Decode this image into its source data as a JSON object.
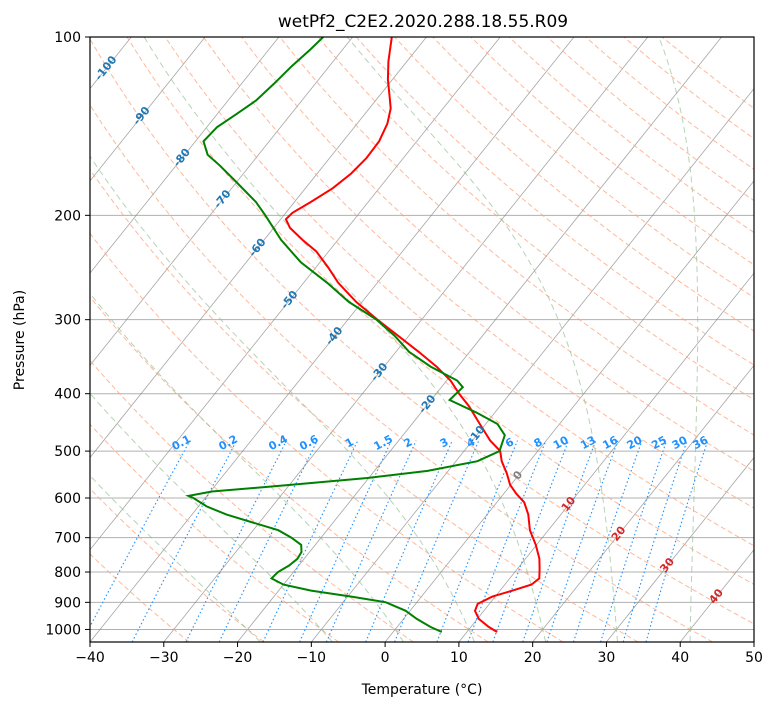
{
  "chart_data": {
    "type": "line",
    "subtype": "skew-T log-p diagram",
    "title": "wetPf2_C2E2.2020.288.18.55.R09",
    "xlabel": "Temperature (°C)",
    "ylabel": "Pressure (hPa)",
    "xlim": [
      -40,
      50
    ],
    "ylim": [
      1050,
      100
    ],
    "x_ticks": [
      -40,
      -30,
      -20,
      -10,
      0,
      10,
      20,
      30,
      40,
      50
    ],
    "x_tick_labels": [
      "−40",
      "−30",
      "−20",
      "−10",
      "0",
      "10",
      "20",
      "30",
      "40",
      "50"
    ],
    "y_ticks": [
      100,
      200,
      300,
      400,
      500,
      600,
      700,
      800,
      900,
      1000
    ],
    "y_tick_labels": [
      "100",
      "200",
      "300",
      "400",
      "500",
      "600",
      "700",
      "800",
      "900",
      "1000"
    ],
    "grid": true,
    "series": [
      {
        "name": "Temperature",
        "color": "#ff0000",
        "points": [
          {
            "p": 1010,
            "t": 14.1
          },
          {
            "p": 990,
            "t": 12.4
          },
          {
            "p": 960,
            "t": 10.2
          },
          {
            "p": 930,
            "t": 8.8
          },
          {
            "p": 905,
            "t": 8.4
          },
          {
            "p": 880,
            "t": 9.6
          },
          {
            "p": 860,
            "t": 11.7
          },
          {
            "p": 840,
            "t": 13.6
          },
          {
            "p": 820,
            "t": 14.0
          },
          {
            "p": 790,
            "t": 13.0
          },
          {
            "p": 760,
            "t": 11.9
          },
          {
            "p": 720,
            "t": 9.9
          },
          {
            "p": 680,
            "t": 7.5
          },
          {
            "p": 640,
            "t": 5.6
          },
          {
            "p": 610,
            "t": 3.7
          },
          {
            "p": 590,
            "t": 1.7
          },
          {
            "p": 570,
            "t": -0.1
          },
          {
            "p": 545,
            "t": -1.8
          },
          {
            "p": 520,
            "t": -3.8
          },
          {
            "p": 500,
            "t": -5.1
          },
          {
            "p": 480,
            "t": -7.6
          },
          {
            "p": 450,
            "t": -10.8
          },
          {
            "p": 420,
            "t": -14.2
          },
          {
            "p": 400,
            "t": -16.9
          },
          {
            "p": 380,
            "t": -19.5
          },
          {
            "p": 360,
            "t": -22.9
          },
          {
            "p": 340,
            "t": -26.9
          },
          {
            "p": 320,
            "t": -31.3
          },
          {
            "p": 300,
            "t": -36.0
          },
          {
            "p": 280,
            "t": -40.8
          },
          {
            "p": 260,
            "t": -45.3
          },
          {
            "p": 245,
            "t": -48.3
          },
          {
            "p": 230,
            "t": -51.7
          },
          {
            "p": 220,
            "t": -54.8
          },
          {
            "p": 210,
            "t": -57.8
          },
          {
            "p": 203,
            "t": -59.3
          },
          {
            "p": 198,
            "t": -59.1
          },
          {
            "p": 190,
            "t": -57.8
          },
          {
            "p": 180,
            "t": -56.3
          },
          {
            "p": 170,
            "t": -55.4
          },
          {
            "p": 160,
            "t": -55.0
          },
          {
            "p": 150,
            "t": -55.1
          },
          {
            "p": 140,
            "t": -55.9
          },
          {
            "p": 132,
            "t": -57.1
          },
          {
            "p": 125,
            "t": -58.8
          },
          {
            "p": 118,
            "t": -60.6
          },
          {
            "p": 110,
            "t": -62.5
          },
          {
            "p": 100,
            "t": -64.7
          }
        ]
      },
      {
        "name": "Dewpoint",
        "color": "#008000",
        "points": [
          {
            "p": 1010,
            "t": 6.6
          },
          {
            "p": 990,
            "t": 4.5
          },
          {
            "p": 960,
            "t": 1.8
          },
          {
            "p": 930,
            "t": -0.6
          },
          {
            "p": 900,
            "t": -4.2
          },
          {
            "p": 880,
            "t": -9.5
          },
          {
            "p": 860,
            "t": -15.6
          },
          {
            "p": 840,
            "t": -20.0
          },
          {
            "p": 820,
            "t": -22.3
          },
          {
            "p": 800,
            "t": -22.1
          },
          {
            "p": 780,
            "t": -21.3
          },
          {
            "p": 760,
            "t": -20.9
          },
          {
            "p": 740,
            "t": -21.1
          },
          {
            "p": 720,
            "t": -21.9
          },
          {
            "p": 700,
            "t": -24.0
          },
          {
            "p": 680,
            "t": -26.6
          },
          {
            "p": 660,
            "t": -30.9
          },
          {
            "p": 640,
            "t": -35.3
          },
          {
            "p": 620,
            "t": -38.9
          },
          {
            "p": 600,
            "t": -41.6
          },
          {
            "p": 595,
            "t": -42.5
          },
          {
            "p": 585,
            "t": -39.8
          },
          {
            "p": 570,
            "t": -29.7
          },
          {
            "p": 555,
            "t": -20.2
          },
          {
            "p": 540,
            "t": -12.8
          },
          {
            "p": 520,
            "t": -7.1
          },
          {
            "p": 500,
            "t": -5.2
          },
          {
            "p": 470,
            "t": -6.2
          },
          {
            "p": 450,
            "t": -8.4
          },
          {
            "p": 430,
            "t": -12.6
          },
          {
            "p": 410,
            "t": -17.5
          },
          {
            "p": 400,
            "t": -17.3
          },
          {
            "p": 390,
            "t": -17.1
          },
          {
            "p": 380,
            "t": -18.6
          },
          {
            "p": 360,
            "t": -23.7
          },
          {
            "p": 340,
            "t": -28.2
          },
          {
            "p": 320,
            "t": -31.8
          },
          {
            "p": 300,
            "t": -36.1
          },
          {
            "p": 280,
            "t": -41.8
          },
          {
            "p": 260,
            "t": -46.8
          },
          {
            "p": 240,
            "t": -52.6
          },
          {
            "p": 220,
            "t": -57.7
          },
          {
            "p": 200,
            "t": -62.5
          },
          {
            "p": 190,
            "t": -65.2
          },
          {
            "p": 175,
            "t": -70.3
          },
          {
            "p": 165,
            "t": -74.0
          },
          {
            "p": 158,
            "t": -76.9
          },
          {
            "p": 150,
            "t": -78.9
          },
          {
            "p": 142,
            "t": -78.6
          },
          {
            "p": 135,
            "t": -77.4
          },
          {
            "p": 128,
            "t": -76.2
          },
          {
            "p": 120,
            "t": -75.6
          },
          {
            "p": 112,
            "t": -75.1
          },
          {
            "p": 105,
            "t": -74.4
          },
          {
            "p": 100,
            "t": -74.0
          }
        ]
      }
    ],
    "isotherm_labels": [
      "-100",
      "-90",
      "-80",
      "-70",
      "-60",
      "-50",
      "-40",
      "-30",
      "-20",
      "-10",
      "0",
      "10",
      "20",
      "30",
      "40"
    ],
    "isotherm_values": [
      -100,
      -90,
      -80,
      -70,
      -60,
      -50,
      -40,
      -30,
      -20,
      -10,
      0,
      10,
      20,
      30,
      40
    ],
    "isotherm_label_pressures": [
      113,
      136,
      160,
      188,
      227,
      278,
      320,
      368,
      417,
      470,
      550,
      615,
      690,
      780,
      880
    ],
    "mixing_ratio_labels": [
      "0.1",
      "0.2",
      "0.4",
      "0.6",
      "1",
      "1.5",
      "2",
      "3",
      "4",
      "6",
      "8",
      "10",
      "13",
      "16",
      "20",
      "25",
      "30",
      "36"
    ],
    "mixing_ratio_values": [
      0.1,
      0.2,
      0.4,
      0.6,
      1,
      1.5,
      2,
      3,
      4,
      6,
      8,
      10,
      13,
      16,
      20,
      25,
      30,
      36
    ],
    "mixing_ratio_label_pressure": 490,
    "colors": {
      "isotherm_label_cold": "#1f77b4",
      "isotherm_label_zero": "#7f7f7f",
      "isotherm_label_warm": "#d62728",
      "mixing_ratio": "#1e90ff",
      "dry_adiabat": "#ffa07a",
      "moist_adiabat": "#8fbc8f",
      "skewed_isotherm": "#808080",
      "grid": "#b0b0b0"
    }
  }
}
